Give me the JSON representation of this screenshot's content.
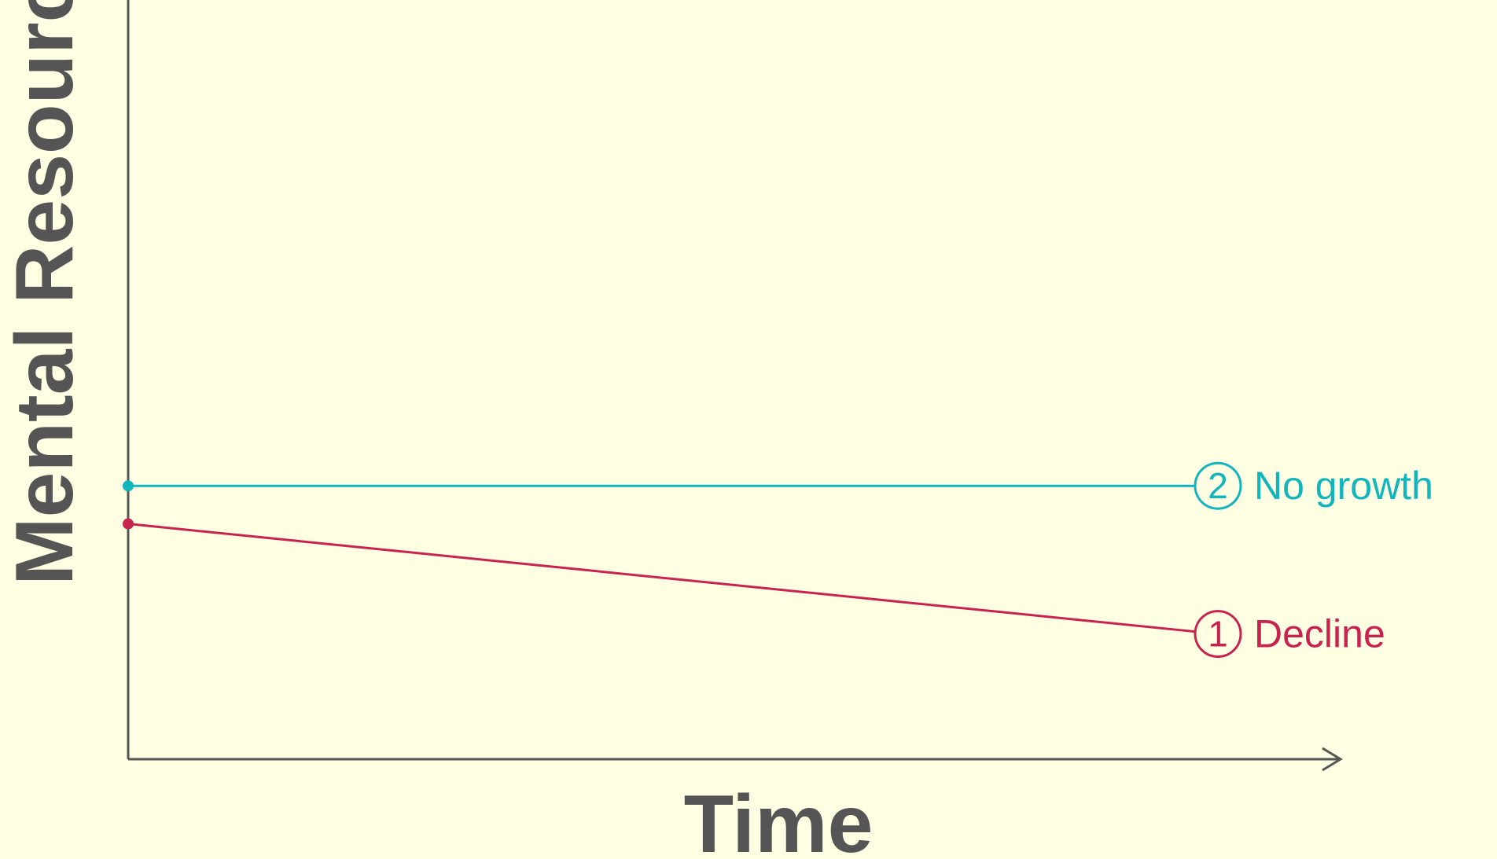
{
  "chart_data": {
    "type": "line",
    "xlabel": "Time",
    "ylabel": "Mental Resources",
    "grid": false,
    "axis_color": "#555555",
    "background_color": "#FEFEE3",
    "series": [
      {
        "name": "No growth",
        "marker": "2",
        "color": "#12B5BC",
        "values": [
          {
            "x": 0,
            "y": 0.36
          },
          {
            "x": 0.9,
            "y": 0.36
          }
        ]
      },
      {
        "name": "Decline",
        "marker": "1",
        "color": "#C8234F",
        "values": [
          {
            "x": 0,
            "y": 0.31
          },
          {
            "x": 0.9,
            "y": 0.165
          }
        ]
      }
    ]
  }
}
